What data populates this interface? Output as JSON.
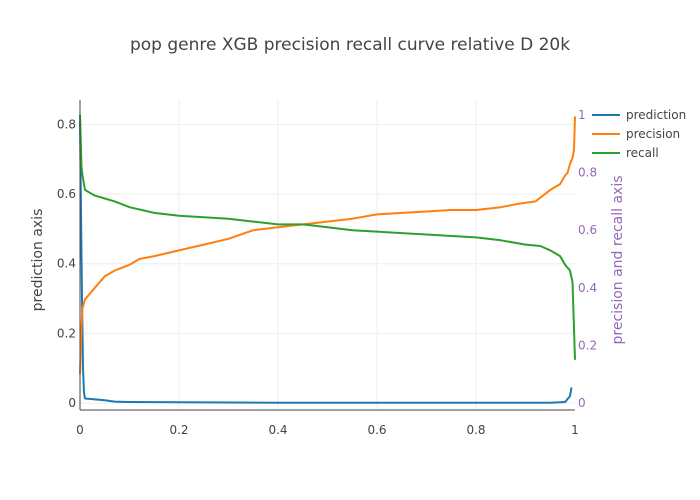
{
  "chart_data": {
    "type": "line",
    "title": "pop genre XGB precision recall curve relative D 20k",
    "xlabel": "",
    "ylabel": "prediction axis",
    "y2label": "precision and recall axis",
    "xlim": [
      0,
      1
    ],
    "ylim": [
      -0.02,
      0.87
    ],
    "y2lim": [
      0,
      1.0
    ],
    "xticks": [
      "0",
      "0.2",
      "0.4",
      "0.6",
      "0.8",
      "1"
    ],
    "yticks": [
      "0",
      "0.2",
      "0.4",
      "0.6",
      "0.8"
    ],
    "y2ticks": [
      "0",
      "0.2",
      "0.4",
      "0.6",
      "0.8",
      "1"
    ],
    "grid": true,
    "legend_position": "top-right",
    "series": [
      {
        "name": "prediction",
        "axis": "y",
        "color": "#1f77b4",
        "x": [
          0,
          0.002,
          0.004,
          0.006,
          0.008,
          0.01,
          0.05,
          0.07,
          0.1,
          0.2,
          0.4,
          0.6,
          0.8,
          0.9,
          0.95,
          0.97,
          0.98,
          0.99,
          0.993
        ],
        "y": [
          0.81,
          0.55,
          0.3,
          0.1,
          0.03,
          0.013,
          0.008,
          0.004,
          0.003,
          0.002,
          0.001,
          0.001,
          0.001,
          0.001,
          0.001,
          0.002,
          0.003,
          0.02,
          0.045
        ]
      },
      {
        "name": "precision",
        "axis": "y2",
        "color": "#ff7f0e",
        "x": [
          0,
          0.003,
          0.005,
          0.01,
          0.02,
          0.03,
          0.05,
          0.07,
          0.1,
          0.12,
          0.15,
          0.2,
          0.25,
          0.3,
          0.35,
          0.4,
          0.45,
          0.5,
          0.55,
          0.6,
          0.65,
          0.7,
          0.75,
          0.8,
          0.85,
          0.88,
          0.9,
          0.92,
          0.95,
          0.97,
          0.98,
          0.985,
          0.99,
          0.995,
          0.998,
          1.0
        ],
        "y": [
          0.1,
          0.27,
          0.33,
          0.36,
          0.38,
          0.4,
          0.44,
          0.46,
          0.48,
          0.5,
          0.51,
          0.53,
          0.55,
          0.57,
          0.6,
          0.61,
          0.62,
          0.63,
          0.64,
          0.655,
          0.66,
          0.665,
          0.67,
          0.67,
          0.68,
          0.69,
          0.695,
          0.7,
          0.74,
          0.76,
          0.79,
          0.8,
          0.83,
          0.85,
          0.88,
          0.995
        ]
      },
      {
        "name": "recall",
        "axis": "y2",
        "color": "#2ca02c",
        "x": [
          0,
          0.003,
          0.005,
          0.01,
          0.02,
          0.03,
          0.05,
          0.07,
          0.1,
          0.15,
          0.2,
          0.25,
          0.3,
          0.35,
          0.4,
          0.45,
          0.5,
          0.55,
          0.6,
          0.65,
          0.7,
          0.75,
          0.8,
          0.85,
          0.9,
          0.93,
          0.95,
          0.96,
          0.97,
          0.98,
          0.99,
          0.995,
          1.0
        ],
        "y": [
          1.0,
          0.82,
          0.79,
          0.74,
          0.73,
          0.72,
          0.71,
          0.7,
          0.68,
          0.66,
          0.65,
          0.645,
          0.64,
          0.63,
          0.62,
          0.62,
          0.61,
          0.6,
          0.595,
          0.59,
          0.585,
          0.58,
          0.575,
          0.565,
          0.55,
          0.545,
          0.53,
          0.52,
          0.51,
          0.48,
          0.46,
          0.42,
          0.15
        ]
      }
    ]
  }
}
